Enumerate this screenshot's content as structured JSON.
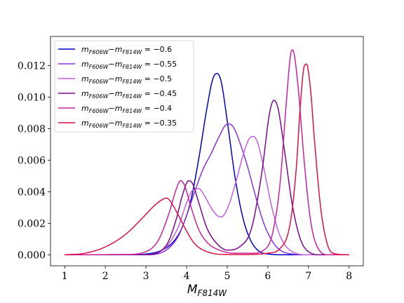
{
  "chart_data": {
    "type": "line",
    "title": "",
    "xlabel": "M_F814W",
    "xlabel_main": "M",
    "xlabel_sub": "F814W",
    "ylabel": "",
    "xlim": [
      0.65,
      8.35
    ],
    "ylim": [
      -0.0007,
      0.01385
    ],
    "xticks": [
      1,
      2,
      3,
      4,
      5,
      6,
      7,
      8
    ],
    "yticks": [
      0.0,
      0.002,
      0.004,
      0.006,
      0.008,
      0.01,
      0.012
    ],
    "ytick_labels": [
      "0.000",
      "0.002",
      "0.004",
      "0.006",
      "0.008",
      "0.010",
      "0.012"
    ],
    "grid": false,
    "legend_position": "top-left",
    "legend_main": "m",
    "legend_sub1": "F606W",
    "legend_minus": "−m",
    "legend_sub2": "F814W",
    "legend_eq": "=",
    "series": [
      {
        "name": "mF606W − mF814W = −0.6",
        "value_label": "−0.6",
        "color": "#0000cc",
        "x": [
          1.0,
          2.5,
          3.0,
          3.4,
          3.7,
          3.9,
          4.1,
          4.3,
          4.5,
          4.65,
          4.75,
          4.85,
          5.0,
          5.2,
          5.4,
          5.6,
          5.8,
          6.0,
          6.5,
          8.0
        ],
        "y": [
          0.0,
          0.0,
          5e-05,
          0.0003,
          0.0009,
          0.0018,
          0.0034,
          0.0061,
          0.0093,
          0.0112,
          0.0115,
          0.011,
          0.0085,
          0.0048,
          0.0022,
          0.0008,
          0.0002,
          5e-05,
          0.0,
          0.0
        ]
      },
      {
        "name": "mF606W − mF814W = −0.55",
        "value_label": "−0.55",
        "color": "#8833dd",
        "x": [
          1.0,
          3.0,
          3.5,
          3.8,
          4.0,
          4.2,
          4.4,
          4.6,
          4.8,
          4.95,
          5.05,
          5.15,
          5.3,
          5.5,
          5.7,
          5.9,
          6.1,
          6.3,
          6.6,
          7.0,
          8.0
        ],
        "y": [
          0.0,
          0.0,
          0.0003,
          0.0012,
          0.0025,
          0.004,
          0.0054,
          0.0064,
          0.0075,
          0.0082,
          0.0083,
          0.0081,
          0.0072,
          0.0056,
          0.0037,
          0.002,
          0.0009,
          0.0003,
          5e-05,
          0.0,
          0.0
        ]
      },
      {
        "name": "mF606W − mF814W = −0.5",
        "value_label": "−0.5",
        "color": "#c060e0",
        "x": [
          1.0,
          3.0,
          3.5,
          3.8,
          4.0,
          4.15,
          4.3,
          4.45,
          4.6,
          4.75,
          4.85,
          5.0,
          5.2,
          5.4,
          5.55,
          5.65,
          5.75,
          5.9,
          6.1,
          6.3,
          6.6,
          7.0,
          8.0
        ],
        "y": [
          0.0,
          2e-05,
          0.0005,
          0.0018,
          0.0033,
          0.0041,
          0.0042,
          0.0037,
          0.003,
          0.0025,
          0.0024,
          0.0029,
          0.0045,
          0.0064,
          0.0074,
          0.0075,
          0.0071,
          0.0055,
          0.003,
          0.0012,
          0.0002,
          0.0,
          0.0
        ]
      },
      {
        "name": "mF606W − mF814W = −0.45",
        "value_label": "−0.45",
        "color": "#7a0a8a",
        "x": [
          1.0,
          3.0,
          3.5,
          3.75,
          3.9,
          4.05,
          4.15,
          4.3,
          4.5,
          4.75,
          5.0,
          5.3,
          5.6,
          5.85,
          6.05,
          6.15,
          6.25,
          6.4,
          6.6,
          6.8,
          7.0,
          7.3,
          8.0
        ],
        "y": [
          0.0,
          2e-05,
          0.0006,
          0.0023,
          0.0038,
          0.0047,
          0.0045,
          0.0033,
          0.0017,
          0.0007,
          0.0003,
          0.0005,
          0.0017,
          0.0052,
          0.0091,
          0.0098,
          0.0093,
          0.0068,
          0.0032,
          0.001,
          0.0002,
          0.0,
          0.0
        ]
      },
      {
        "name": "mF606W − mF814W = −0.4",
        "value_label": "−0.4",
        "color": "#cc2299",
        "x": [
          1.0,
          2.5,
          3.0,
          3.3,
          3.55,
          3.75,
          3.85,
          3.95,
          4.1,
          4.3,
          4.5,
          4.8,
          5.2,
          5.6,
          5.9,
          6.1,
          6.3,
          6.45,
          6.55,
          6.6,
          6.65,
          6.75,
          6.9,
          7.05,
          7.2,
          7.5,
          8.0
        ],
        "y": [
          0.0,
          2e-05,
          0.0002,
          0.0009,
          0.0025,
          0.0042,
          0.0047,
          0.0044,
          0.0031,
          0.0016,
          0.0008,
          0.0003,
          0.0001,
          0.0001,
          0.0003,
          0.0012,
          0.0045,
          0.0095,
          0.0125,
          0.013,
          0.0127,
          0.0105,
          0.0058,
          0.0022,
          0.0006,
          0.0,
          0.0
        ]
      },
      {
        "name": "mF606W − mF814W = −0.35",
        "value_label": "−0.35",
        "color": "#dd1144",
        "x": [
          1.0,
          1.5,
          2.0,
          2.5,
          2.9,
          3.2,
          3.4,
          3.5,
          3.6,
          3.8,
          4.0,
          4.2,
          4.5,
          5.0,
          5.5,
          6.0,
          6.3,
          6.55,
          6.7,
          6.8,
          6.9,
          6.95,
          7.05,
          7.15,
          7.3,
          7.45,
          7.6,
          8.0
        ],
        "y": [
          0.0,
          0.0001,
          0.0005,
          0.0013,
          0.0023,
          0.0031,
          0.0035,
          0.0036,
          0.0034,
          0.0025,
          0.0015,
          0.0007,
          0.0002,
          2e-05,
          2e-05,
          0.0001,
          0.0004,
          0.002,
          0.0055,
          0.0095,
          0.012,
          0.0121,
          0.0105,
          0.0072,
          0.003,
          0.0008,
          0.0001,
          0.0
        ]
      }
    ]
  }
}
